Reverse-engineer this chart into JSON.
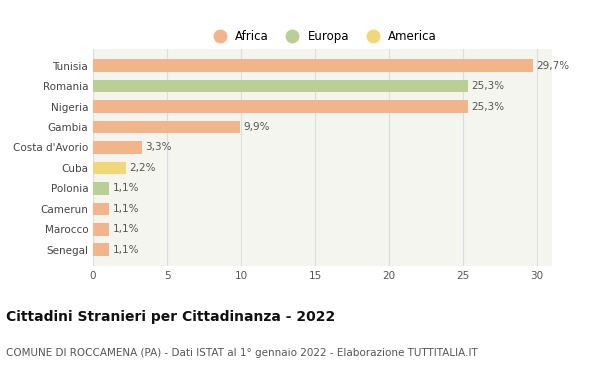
{
  "categories": [
    "Tunisia",
    "Romania",
    "Nigeria",
    "Gambia",
    "Costa d'Avorio",
    "Cuba",
    "Polonia",
    "Camerun",
    "Marocco",
    "Senegal"
  ],
  "values": [
    29.7,
    25.3,
    25.3,
    9.9,
    3.3,
    2.2,
    1.1,
    1.1,
    1.1,
    1.1
  ],
  "labels": [
    "29,7%",
    "25,3%",
    "25,3%",
    "9,9%",
    "3,3%",
    "2,2%",
    "1,1%",
    "1,1%",
    "1,1%",
    "1,1%"
  ],
  "continent": [
    "Africa",
    "Europa",
    "Africa",
    "Africa",
    "Africa",
    "America",
    "Europa",
    "Africa",
    "Africa",
    "Africa"
  ],
  "colors": {
    "Africa": "#F2B48A",
    "Europa": "#BACF96",
    "America": "#F0D87A"
  },
  "title": "Cittadini Stranieri per Cittadinanza - 2022",
  "subtitle": "COMUNE DI ROCCAMENA (PA) - Dati ISTAT al 1° gennaio 2022 - Elaborazione TUTTITALIA.IT",
  "xlim": [
    0,
    31
  ],
  "xticks": [
    0,
    5,
    10,
    15,
    20,
    25,
    30
  ],
  "background_color": "#ffffff",
  "plot_bg_color": "#f5f5f0",
  "grid_color": "#dddddd",
  "title_fontsize": 10,
  "subtitle_fontsize": 7.5,
  "label_fontsize": 7.5,
  "tick_fontsize": 7.5,
  "legend_fontsize": 8.5
}
